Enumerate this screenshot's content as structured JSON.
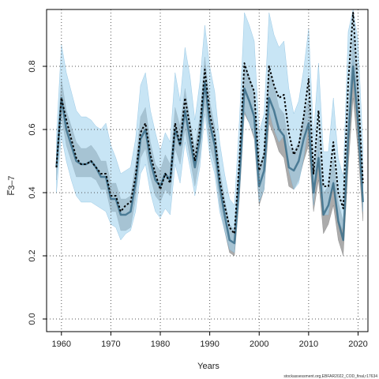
{
  "chart_data": {
    "type": "line",
    "title": "",
    "xlabel": "Years",
    "ylabel": "F̅3–7",
    "xlim": [
      1957,
      2022
    ],
    "ylim": [
      -0.04,
      0.98
    ],
    "x_ticks": [
      1960,
      1970,
      1980,
      1990,
      2000,
      2010,
      2020
    ],
    "y_ticks": [
      0.0,
      0.2,
      0.4,
      0.6,
      0.8
    ],
    "grid": true,
    "legend": "none",
    "source": "stockassessment.org,EBFAR2022_COD_final,r17634",
    "colors": {
      "wide_band": "#a3d3ee",
      "narrow_band": "#8f8f8f",
      "estimate_line": "#000000",
      "retro_line": "#3b6f8a"
    },
    "x": [
      1959,
      1960,
      1961,
      1962,
      1963,
      1964,
      1965,
      1966,
      1967,
      1968,
      1969,
      1970,
      1971,
      1972,
      1973,
      1974,
      1975,
      1976,
      1977,
      1978,
      1979,
      1980,
      1981,
      1982,
      1983,
      1984,
      1985,
      1986,
      1987,
      1988,
      1989,
      1990,
      1991,
      1992,
      1993,
      1994,
      1995,
      1996,
      1997,
      1998,
      1999,
      2000,
      2001,
      2002,
      2003,
      2004,
      2005,
      2006,
      2007,
      2008,
      2009,
      2010,
      2011,
      2012,
      2013,
      2014,
      2015,
      2016,
      2017,
      2018,
      2019,
      2020,
      2021
    ],
    "series": [
      {
        "role": "estimate",
        "values": [
          0.48,
          0.7,
          0.63,
          0.57,
          0.51,
          0.49,
          0.49,
          0.5,
          0.48,
          0.46,
          0.46,
          0.39,
          0.39,
          0.34,
          0.36,
          0.37,
          0.45,
          0.59,
          0.62,
          0.52,
          0.46,
          0.41,
          0.46,
          0.43,
          0.62,
          0.55,
          0.7,
          0.61,
          0.5,
          0.6,
          0.79,
          0.65,
          0.58,
          0.44,
          0.36,
          0.29,
          0.27,
          0.5,
          0.81,
          0.76,
          0.72,
          0.47,
          0.52,
          0.8,
          0.74,
          0.7,
          0.71,
          0.59,
          0.52,
          0.55,
          0.64,
          0.76,
          0.46,
          0.66,
          0.42,
          0.42,
          0.56,
          0.4,
          0.35,
          0.75,
          0.97,
          0.72,
          0.43
        ]
      },
      {
        "role": "estimate_lower",
        "values": [
          0.4,
          0.58,
          0.5,
          0.44,
          0.39,
          0.37,
          0.37,
          0.37,
          0.36,
          0.35,
          0.34,
          0.3,
          0.29,
          0.25,
          0.27,
          0.28,
          0.34,
          0.46,
          0.49,
          0.4,
          0.34,
          0.32,
          0.35,
          0.33,
          0.49,
          0.43,
          0.56,
          0.48,
          0.39,
          0.48,
          0.65,
          0.52,
          0.46,
          0.34,
          0.28,
          0.22,
          0.21,
          0.39,
          0.66,
          0.62,
          0.58,
          0.37,
          0.41,
          0.66,
          0.6,
          0.56,
          0.58,
          0.47,
          0.41,
          0.43,
          0.51,
          0.62,
          0.36,
          0.53,
          0.33,
          0.33,
          0.44,
          0.31,
          0.28,
          0.62,
          0.82,
          0.59,
          0.34
        ]
      },
      {
        "role": "estimate_upper",
        "values": [
          0.58,
          0.87,
          0.78,
          0.72,
          0.66,
          0.64,
          0.64,
          0.63,
          0.61,
          0.6,
          0.62,
          0.55,
          0.51,
          0.46,
          0.47,
          0.48,
          0.57,
          0.74,
          0.78,
          0.66,
          0.59,
          0.53,
          0.59,
          0.56,
          0.78,
          0.69,
          0.86,
          0.77,
          0.63,
          0.75,
          0.93,
          0.8,
          0.72,
          0.56,
          0.46,
          0.38,
          0.36,
          0.63,
          0.97,
          0.93,
          0.88,
          0.59,
          0.65,
          0.97,
          0.9,
          0.86,
          0.88,
          0.73,
          0.65,
          0.69,
          0.79,
          0.92,
          0.58,
          0.81,
          0.53,
          0.53,
          0.7,
          0.51,
          0.45,
          0.91,
          0.98,
          0.88,
          0.54
        ]
      },
      {
        "role": "previous",
        "values": [
          0.48,
          0.7,
          0.6,
          0.55,
          0.5,
          0.49,
          0.49,
          0.5,
          0.48,
          0.45,
          0.45,
          0.38,
          0.38,
          0.33,
          0.33,
          0.34,
          0.43,
          0.57,
          0.6,
          0.5,
          0.44,
          0.42,
          0.46,
          0.44,
          0.6,
          0.55,
          0.66,
          0.57,
          0.48,
          0.57,
          0.75,
          0.62,
          0.55,
          0.42,
          0.33,
          0.25,
          0.24,
          0.44,
          0.73,
          0.69,
          0.64,
          0.42,
          0.47,
          0.7,
          0.66,
          0.6,
          0.58,
          0.48,
          0.47,
          0.5,
          0.57,
          0.62,
          0.4,
          0.51,
          0.33,
          0.36,
          0.43,
          0.31,
          0.25,
          0.57,
          0.8,
          0.62,
          0.37
        ]
      },
      {
        "role": "previous_lower",
        "values": [
          0.44,
          0.64,
          0.55,
          0.5,
          0.45,
          0.45,
          0.45,
          0.45,
          0.44,
          0.41,
          0.41,
          0.34,
          0.34,
          0.28,
          0.28,
          0.29,
          0.38,
          0.51,
          0.54,
          0.45,
          0.39,
          0.37,
          0.41,
          0.39,
          0.54,
          0.49,
          0.6,
          0.51,
          0.42,
          0.51,
          0.68,
          0.55,
          0.49,
          0.36,
          0.28,
          0.21,
          0.2,
          0.38,
          0.65,
          0.62,
          0.57,
          0.36,
          0.41,
          0.62,
          0.58,
          0.53,
          0.51,
          0.42,
          0.41,
          0.44,
          0.5,
          0.55,
          0.34,
          0.44,
          0.27,
          0.3,
          0.36,
          0.25,
          0.2,
          0.48,
          0.7,
          0.53,
          0.31
        ]
      },
      {
        "role": "previous_upper",
        "values": [
          0.52,
          0.76,
          0.66,
          0.61,
          0.56,
          0.54,
          0.54,
          0.55,
          0.53,
          0.5,
          0.5,
          0.43,
          0.43,
          0.38,
          0.38,
          0.39,
          0.49,
          0.64,
          0.67,
          0.56,
          0.49,
          0.47,
          0.52,
          0.49,
          0.67,
          0.61,
          0.73,
          0.63,
          0.54,
          0.64,
          0.83,
          0.69,
          0.61,
          0.48,
          0.38,
          0.3,
          0.28,
          0.51,
          0.81,
          0.77,
          0.72,
          0.48,
          0.53,
          0.78,
          0.74,
          0.67,
          0.65,
          0.55,
          0.53,
          0.56,
          0.64,
          0.7,
          0.46,
          0.58,
          0.4,
          0.42,
          0.51,
          0.37,
          0.31,
          0.66,
          0.9,
          0.71,
          0.44
        ]
      }
    ]
  }
}
